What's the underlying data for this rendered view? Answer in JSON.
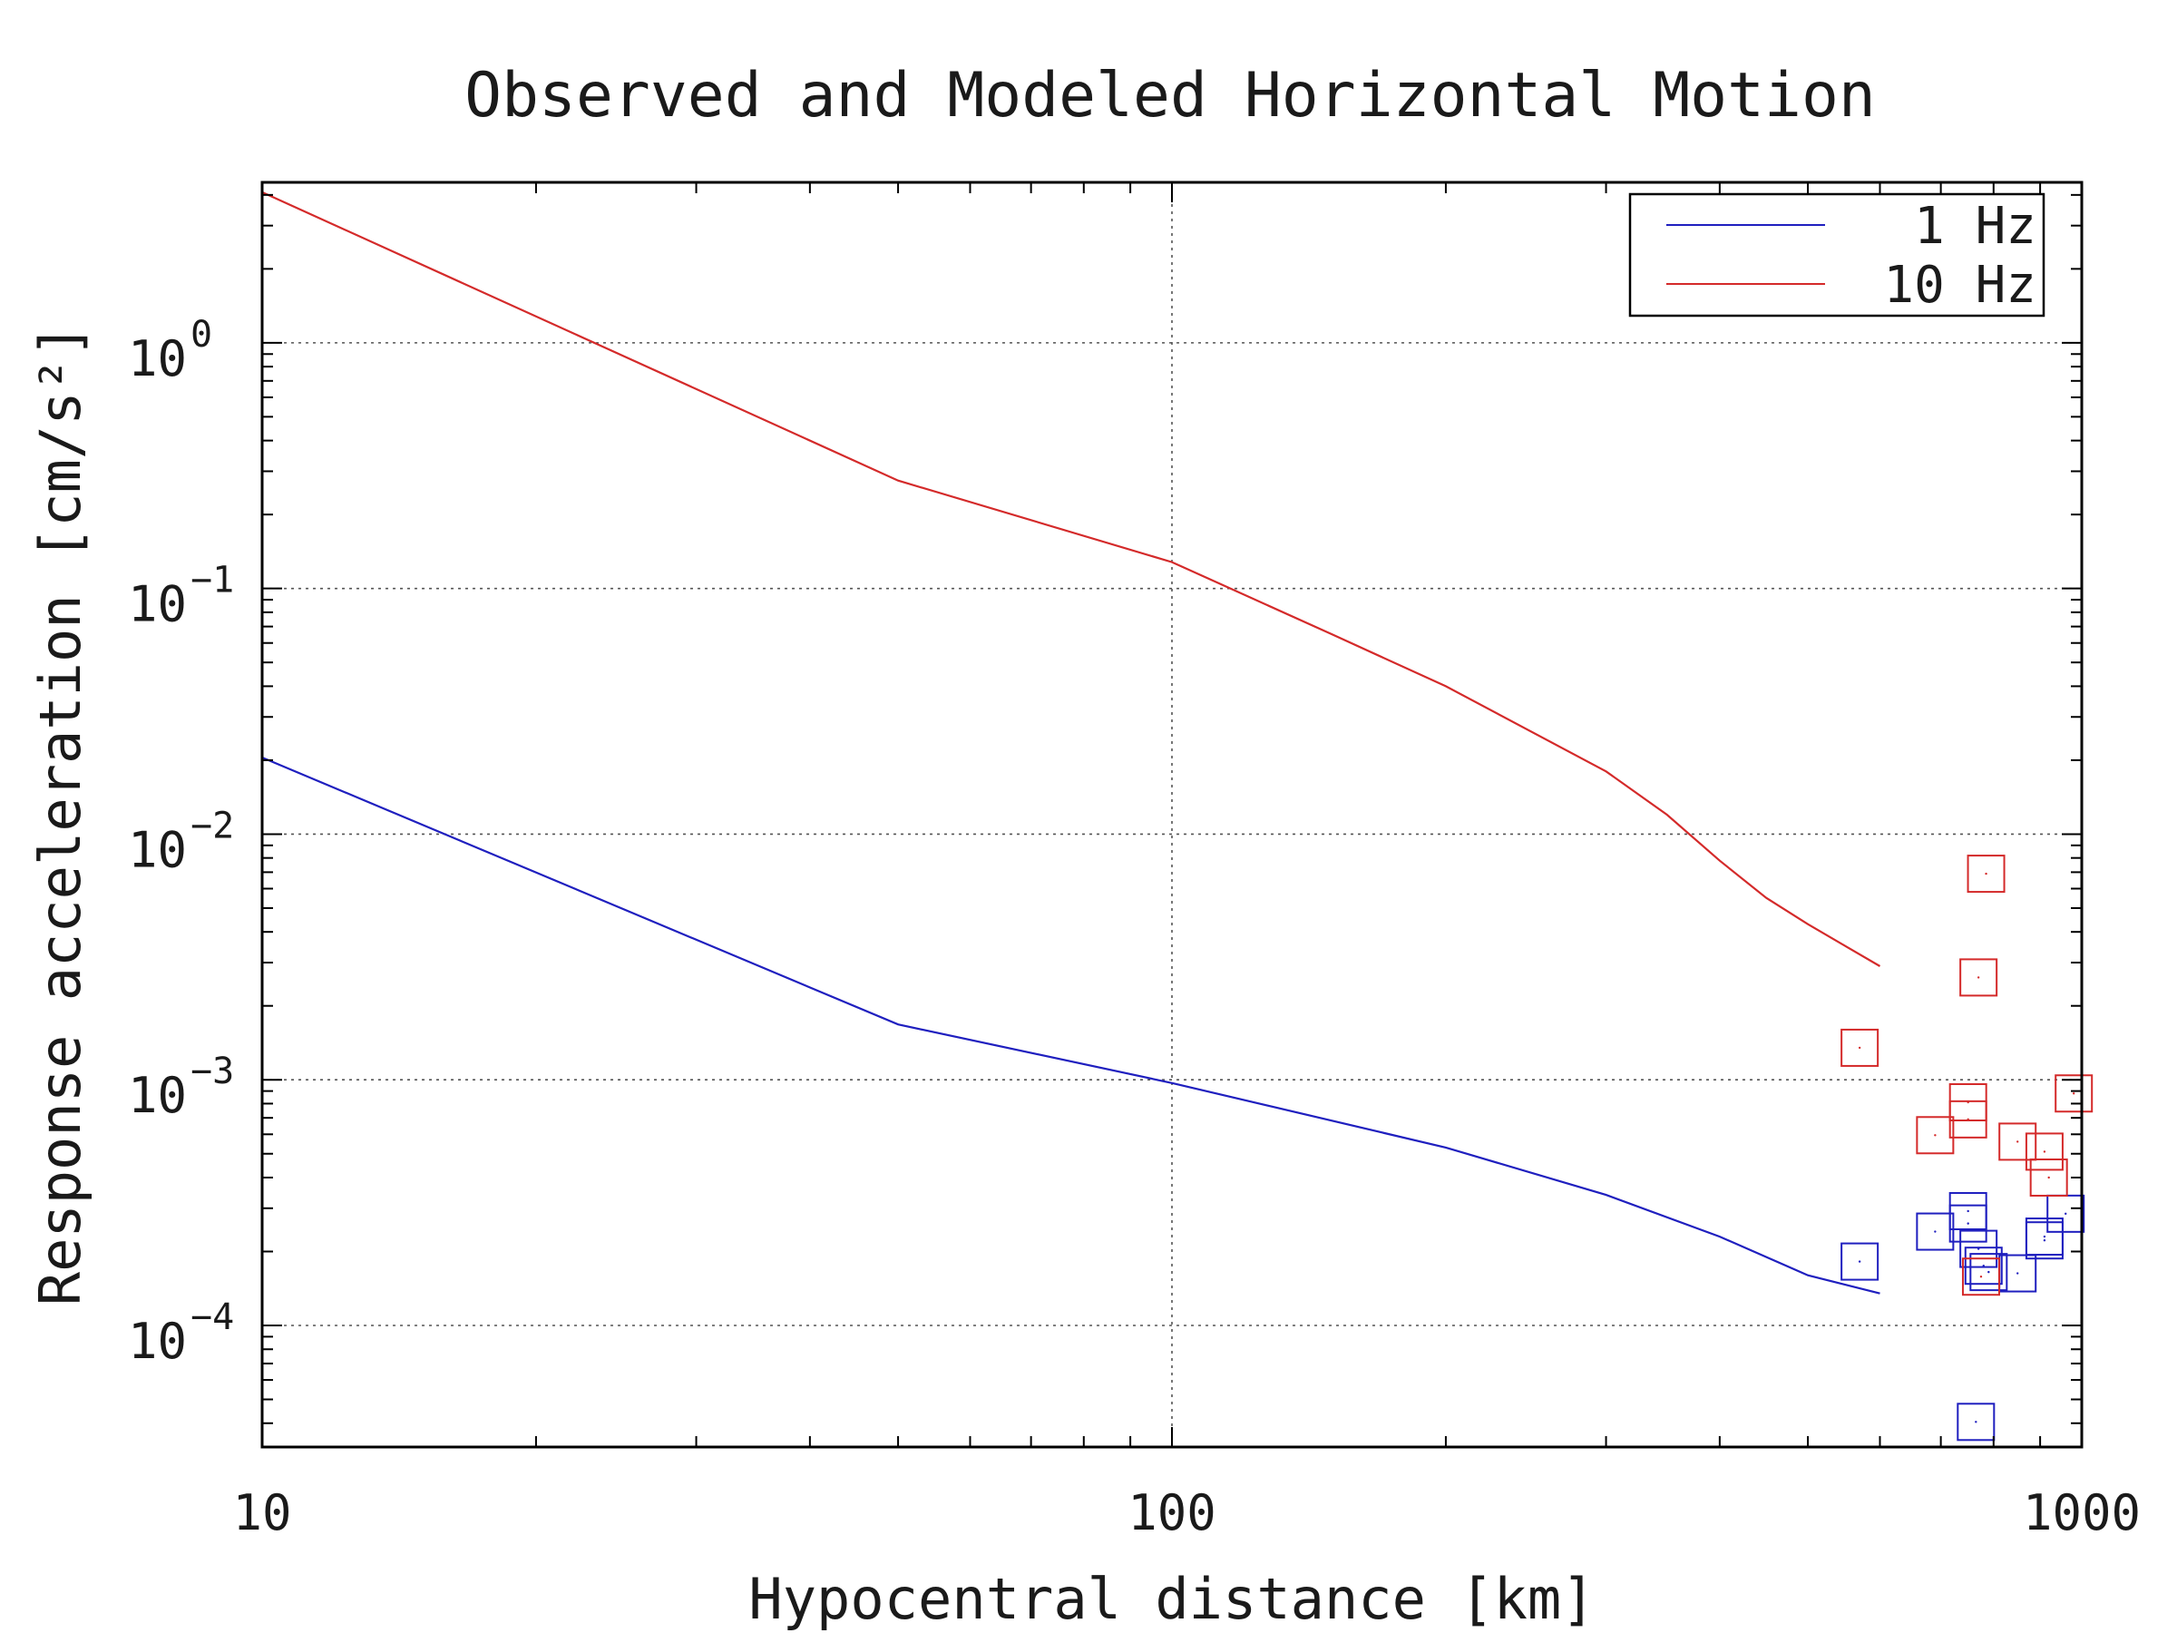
{
  "chart_data": {
    "type": "line",
    "title": "Observed and Modeled Horizontal Motion",
    "xlabel": "Hypocentral distance [km]",
    "ylabel": "Response acceleration [cm/s²]",
    "x_scale": "log",
    "y_scale": "log",
    "xlim": [
      10,
      1000
    ],
    "ylim": [
      3.2e-05,
      4.5
    ],
    "x_ticks": [
      {
        "value": 10,
        "label": "10"
      },
      {
        "value": 100,
        "label": "100"
      },
      {
        "value": 1000,
        "label": "1000"
      }
    ],
    "y_ticks": [
      {
        "value": 1,
        "base": "10",
        "exp": "0"
      },
      {
        "value": 0.1,
        "base": "10",
        "exp": "−1"
      },
      {
        "value": 0.01,
        "base": "10",
        "exp": "−2"
      },
      {
        "value": 0.001,
        "base": "10",
        "exp": "−3"
      },
      {
        "value": 0.0001,
        "base": "10",
        "exp": "−4"
      }
    ],
    "grid": true,
    "legend_position": "top-right",
    "colors": {
      "1 Hz": "#1f1fbf",
      "10 Hz": "#d42a2a"
    },
    "series": [
      {
        "name": "1 Hz",
        "kind": "modeled-line",
        "x": [
          10,
          50,
          100,
          200,
          300,
          400,
          500,
          600
        ],
        "y": [
          0.0205,
          0.00168,
          0.00097,
          0.00053,
          0.00034,
          0.00023,
          0.00016,
          0.000135
        ]
      },
      {
        "name": "10 Hz",
        "kind": "modeled-line",
        "x": [
          10,
          50,
          100,
          150,
          200,
          300,
          350,
          400,
          450,
          500,
          550,
          600
        ],
        "y": [
          4.1,
          0.275,
          0.128,
          0.065,
          0.04,
          0.018,
          0.012,
          0.0078,
          0.0055,
          0.0043,
          0.0035,
          0.0029
        ]
      },
      {
        "name": "1 Hz",
        "kind": "observed-points",
        "x": [
          570,
          690,
          750,
          750,
          770,
          780,
          790,
          850,
          910,
          910,
          960,
          765
        ],
        "y": [
          0.000182,
          0.000241,
          0.000292,
          0.00026,
          0.000205,
          0.000175,
          0.000165,
          0.000163,
          0.000222,
          0.00023,
          0.000285,
          4.05e-05
        ]
      },
      {
        "name": "10 Hz",
        "kind": "observed-points",
        "x": [
          570,
          690,
          750,
          750,
          770,
          785,
          850,
          910,
          920,
          980,
          775
        ],
        "y": [
          0.00135,
          0.000595,
          0.00081,
          0.00069,
          0.00261,
          0.0069,
          0.00056,
          0.00051,
          0.0004,
          0.00088,
          0.000158
        ]
      }
    ]
  }
}
